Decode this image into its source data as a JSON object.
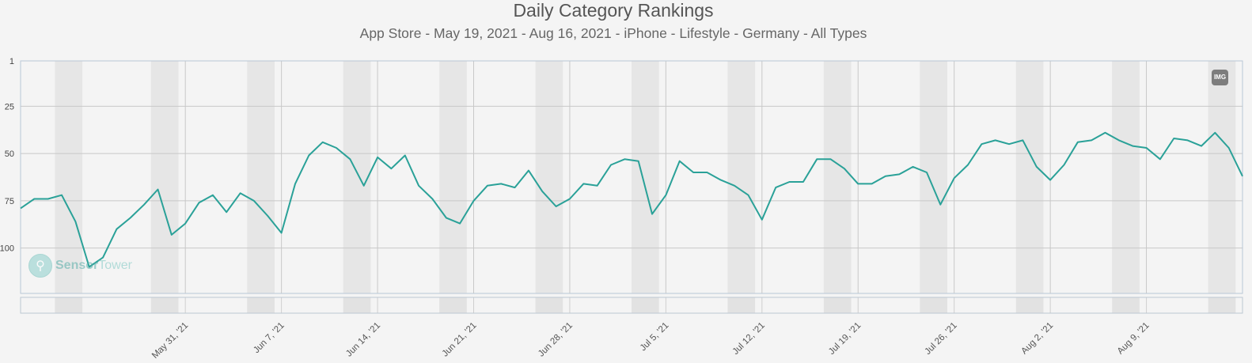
{
  "header": {
    "title": "Daily Category Rankings",
    "subtitle": "App Store - May 19, 2021 - Aug 16, 2021 - iPhone - Lifestyle - Germany - All Types"
  },
  "export_button": {
    "label": "IMG",
    "icon": "image-export-icon"
  },
  "watermark": {
    "part1": "Sensor",
    "part2": "Tower"
  },
  "colors": {
    "line": "#2aa198",
    "grid": "#c8c8c8",
    "weekend": "#e6e6e6"
  },
  "chart_data": {
    "type": "line",
    "title": "Daily Category Rankings",
    "subtitle": "App Store - May 19, 2021 - Aug 16, 2021 - iPhone - Lifestyle - Germany - All Types",
    "x_start": "2021-05-19",
    "x_end": "2021-08-16",
    "y_reversed": true,
    "ylim": [
      1,
      124
    ],
    "yticks": [
      1,
      25,
      50,
      75,
      100
    ],
    "xticks": [
      {
        "date": "2021-05-31",
        "label": "May 31, '21"
      },
      {
        "date": "2021-06-07",
        "label": "Jun 7, '21"
      },
      {
        "date": "2021-06-14",
        "label": "Jun 14, '21"
      },
      {
        "date": "2021-06-21",
        "label": "Jun 21, '21"
      },
      {
        "date": "2021-06-28",
        "label": "Jun 28, '21"
      },
      {
        "date": "2021-07-05",
        "label": "Jul 5, '21"
      },
      {
        "date": "2021-07-12",
        "label": "Jul 12, '21"
      },
      {
        "date": "2021-07-19",
        "label": "Jul 19, '21"
      },
      {
        "date": "2021-07-26",
        "label": "Jul 26, '21"
      },
      {
        "date": "2021-08-02",
        "label": "Aug 2, '21"
      },
      {
        "date": "2021-08-09",
        "label": "Aug 9, '21"
      }
    ],
    "weekends": [
      [
        "2021-05-22",
        "2021-05-23"
      ],
      [
        "2021-05-29",
        "2021-05-30"
      ],
      [
        "2021-06-05",
        "2021-06-06"
      ],
      [
        "2021-06-12",
        "2021-06-13"
      ],
      [
        "2021-06-19",
        "2021-06-20"
      ],
      [
        "2021-06-26",
        "2021-06-27"
      ],
      [
        "2021-07-03",
        "2021-07-04"
      ],
      [
        "2021-07-10",
        "2021-07-11"
      ],
      [
        "2021-07-17",
        "2021-07-18"
      ],
      [
        "2021-07-24",
        "2021-07-25"
      ],
      [
        "2021-07-31",
        "2021-08-01"
      ],
      [
        "2021-08-07",
        "2021-08-08"
      ],
      [
        "2021-08-14",
        "2021-08-15"
      ]
    ],
    "grid": true,
    "legend": "none",
    "series": [
      {
        "values": [
          79,
          74,
          74,
          72,
          86,
          110,
          105,
          90,
          84,
          77,
          69,
          93,
          87,
          76,
          72,
          81,
          71,
          75,
          83,
          92,
          66,
          51,
          44,
          47,
          53,
          67,
          52,
          58,
          51,
          67,
          74,
          84,
          87,
          75,
          67,
          66,
          68,
          59,
          70,
          78,
          74,
          66,
          67,
          56,
          53,
          54,
          82,
          72,
          54,
          60,
          60,
          64,
          67,
          72,
          85,
          68,
          65,
          65,
          53,
          53,
          58,
          66,
          66,
          62,
          61,
          57,
          60,
          77,
          63,
          56,
          45,
          43,
          45,
          43,
          57,
          64,
          56,
          44,
          43,
          39,
          43,
          46,
          47,
          53,
          42,
          43,
          46,
          39,
          47,
          62
        ]
      }
    ]
  }
}
